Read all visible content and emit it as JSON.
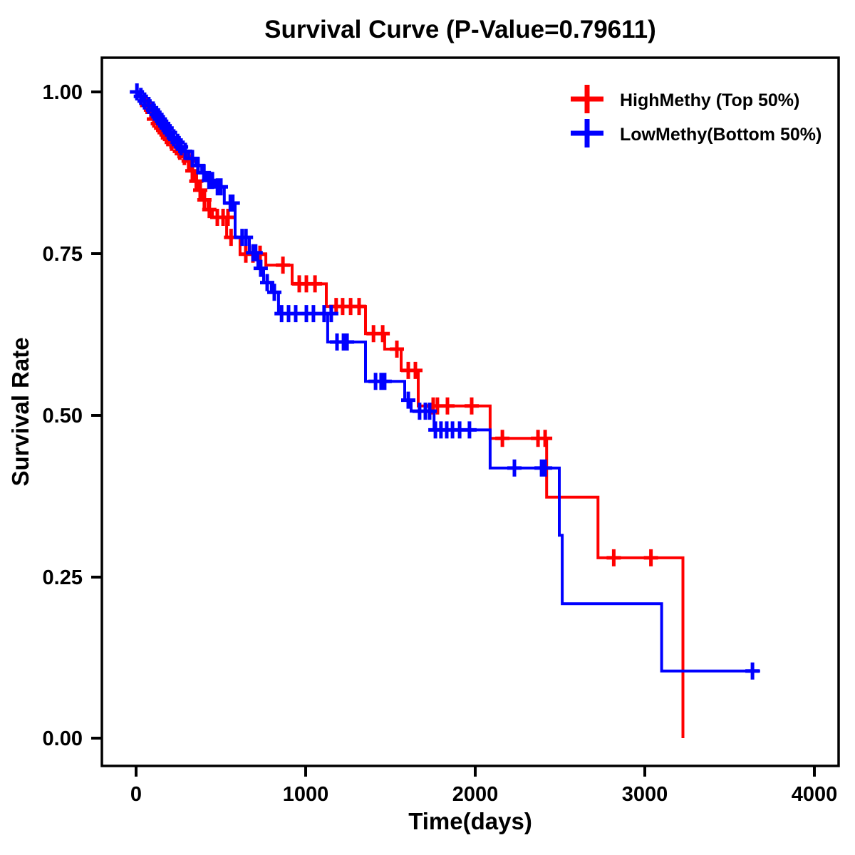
{
  "title": "Survival Curve (P-Value=0.79611)",
  "p_value": "0.79611",
  "chart_data": {
    "type": "line",
    "subtype": "kaplan-meier-step-curve",
    "title": "Survival Curve (P-Value=0.79611)",
    "xlabel": "Time(days)",
    "ylabel": "Survival Rate",
    "xlim": [
      -200,
      4150
    ],
    "ylim": [
      -0.04,
      1.05
    ],
    "grid": false,
    "legend_position": "top-right",
    "x_ticks": [
      0,
      1000,
      2000,
      3000,
      4000
    ],
    "x_tick_labels": [
      "0",
      "1000",
      "2000",
      "3000",
      "4000"
    ],
    "y_ticks": [
      1.0,
      0.75,
      0.5,
      0.25,
      0.0
    ],
    "y_tick_labels": [
      "1.00",
      "0.75",
      "0.50",
      "0.25",
      "0.00"
    ],
    "series": [
      {
        "name": "HighMethy (Top 50%)",
        "slug": "highmethy",
        "color": "#FF0000",
        "marker": "plus",
        "end_time": 3225,
        "steps": [
          [
            0,
            1.0
          ],
          [
            15,
            0.993
          ],
          [
            40,
            0.986
          ],
          [
            60,
            0.979
          ],
          [
            80,
            0.972
          ],
          [
            100,
            0.958
          ],
          [
            120,
            0.951
          ],
          [
            140,
            0.944
          ],
          [
            160,
            0.937
          ],
          [
            180,
            0.929
          ],
          [
            200,
            0.922
          ],
          [
            230,
            0.915
          ],
          [
            250,
            0.908
          ],
          [
            270,
            0.9
          ],
          [
            300,
            0.893
          ],
          [
            320,
            0.878
          ],
          [
            345,
            0.862
          ],
          [
            370,
            0.848
          ],
          [
            395,
            0.833
          ],
          [
            425,
            0.818
          ],
          [
            450,
            0.806
          ],
          [
            534,
            0.775
          ],
          [
            613,
            0.749
          ],
          [
            765,
            0.732
          ],
          [
            920,
            0.703
          ],
          [
            1122,
            0.668
          ],
          [
            1353,
            0.626
          ],
          [
            1466,
            0.602
          ],
          [
            1563,
            0.569
          ],
          [
            1664,
            0.514
          ],
          [
            2088,
            0.464
          ],
          [
            2421,
            0.373
          ],
          [
            2724,
            0.279
          ],
          [
            3225,
            0.0
          ]
        ],
        "censors": [
          [
            65,
            0.979
          ],
          [
            88,
            0.972
          ],
          [
            105,
            0.958
          ],
          [
            128,
            0.951
          ],
          [
            148,
            0.944
          ],
          [
            168,
            0.937
          ],
          [
            188,
            0.929
          ],
          [
            210,
            0.922
          ],
          [
            238,
            0.915
          ],
          [
            258,
            0.908
          ],
          [
            285,
            0.9
          ],
          [
            310,
            0.893
          ],
          [
            332,
            0.878
          ],
          [
            355,
            0.862
          ],
          [
            378,
            0.848
          ],
          [
            403,
            0.833
          ],
          [
            432,
            0.818
          ],
          [
            479,
            0.806
          ],
          [
            513,
            0.806
          ],
          [
            542,
            0.806
          ],
          [
            560,
            0.775
          ],
          [
            647,
            0.749
          ],
          [
            689,
            0.749
          ],
          [
            731,
            0.749
          ],
          [
            866,
            0.732
          ],
          [
            962,
            0.703
          ],
          [
            1004,
            0.703
          ],
          [
            1055,
            0.703
          ],
          [
            1180,
            0.668
          ],
          [
            1218,
            0.668
          ],
          [
            1265,
            0.668
          ],
          [
            1315,
            0.668
          ],
          [
            1400,
            0.626
          ],
          [
            1454,
            0.626
          ],
          [
            1538,
            0.602
          ],
          [
            1605,
            0.569
          ],
          [
            1647,
            0.569
          ],
          [
            1752,
            0.514
          ],
          [
            1777,
            0.514
          ],
          [
            1836,
            0.514
          ],
          [
            1979,
            0.514
          ],
          [
            2160,
            0.464
          ],
          [
            2370,
            0.464
          ],
          [
            2412,
            0.464
          ],
          [
            2817,
            0.279
          ],
          [
            3036,
            0.279
          ]
        ]
      },
      {
        "name": "LowMethy(Bottom 50%)",
        "slug": "lowmethy",
        "color": "#0000FF",
        "marker": "plus",
        "end_time": 3680,
        "steps": [
          [
            0,
            1.0
          ],
          [
            20,
            0.993
          ],
          [
            45,
            0.986
          ],
          [
            70,
            0.979
          ],
          [
            95,
            0.972
          ],
          [
            115,
            0.965
          ],
          [
            135,
            0.958
          ],
          [
            155,
            0.951
          ],
          [
            175,
            0.944
          ],
          [
            195,
            0.937
          ],
          [
            215,
            0.929
          ],
          [
            240,
            0.922
          ],
          [
            260,
            0.915
          ],
          [
            280,
            0.908
          ],
          [
            310,
            0.897
          ],
          [
            353,
            0.886
          ],
          [
            387,
            0.875
          ],
          [
            415,
            0.863
          ],
          [
            465,
            0.853
          ],
          [
            520,
            0.828
          ],
          [
            584,
            0.775
          ],
          [
            668,
            0.751
          ],
          [
            718,
            0.727
          ],
          [
            752,
            0.705
          ],
          [
            798,
            0.69
          ],
          [
            840,
            0.657
          ],
          [
            1130,
            0.613
          ],
          [
            1353,
            0.552
          ],
          [
            1584,
            0.523
          ],
          [
            1622,
            0.506
          ],
          [
            1757,
            0.477
          ],
          [
            2088,
            0.418
          ],
          [
            2496,
            0.314
          ],
          [
            2513,
            0.208
          ],
          [
            3099,
            0.104
          ]
        ],
        "censors": [
          [
            5,
            1.0
          ],
          [
            28,
            0.993
          ],
          [
            50,
            0.986
          ],
          [
            75,
            0.979
          ],
          [
            100,
            0.972
          ],
          [
            120,
            0.965
          ],
          [
            140,
            0.958
          ],
          [
            160,
            0.951
          ],
          [
            180,
            0.944
          ],
          [
            200,
            0.937
          ],
          [
            222,
            0.929
          ],
          [
            245,
            0.922
          ],
          [
            265,
            0.915
          ],
          [
            290,
            0.908
          ],
          [
            332,
            0.897
          ],
          [
            365,
            0.886
          ],
          [
            400,
            0.875
          ],
          [
            430,
            0.863
          ],
          [
            450,
            0.863
          ],
          [
            480,
            0.853
          ],
          [
            500,
            0.853
          ],
          [
            556,
            0.828
          ],
          [
            570,
            0.828
          ],
          [
            625,
            0.775
          ],
          [
            648,
            0.775
          ],
          [
            690,
            0.751
          ],
          [
            705,
            0.751
          ],
          [
            735,
            0.727
          ],
          [
            773,
            0.705
          ],
          [
            815,
            0.69
          ],
          [
            858,
            0.657
          ],
          [
            899,
            0.657
          ],
          [
            941,
            0.657
          ],
          [
            1004,
            0.657
          ],
          [
            1046,
            0.657
          ],
          [
            1109,
            0.657
          ],
          [
            1151,
            0.657
          ],
          [
            1185,
            0.613
          ],
          [
            1223,
            0.613
          ],
          [
            1244,
            0.613
          ],
          [
            1412,
            0.552
          ],
          [
            1445,
            0.552
          ],
          [
            1466,
            0.552
          ],
          [
            1605,
            0.523
          ],
          [
            1672,
            0.506
          ],
          [
            1706,
            0.506
          ],
          [
            1731,
            0.506
          ],
          [
            1765,
            0.477
          ],
          [
            1798,
            0.477
          ],
          [
            1832,
            0.477
          ],
          [
            1866,
            0.477
          ],
          [
            1908,
            0.477
          ],
          [
            1966,
            0.477
          ],
          [
            2231,
            0.418
          ],
          [
            2391,
            0.418
          ],
          [
            2412,
            0.418
          ],
          [
            3635,
            0.104
          ]
        ]
      }
    ],
    "legend": {
      "entries": [
        {
          "label": "HighMethy (Top 50%)",
          "color": "#FF0000",
          "marker": "plus"
        },
        {
          "label": "LowMethy(Bottom 50%)",
          "color": "#0000FF",
          "marker": "plus"
        }
      ]
    }
  }
}
